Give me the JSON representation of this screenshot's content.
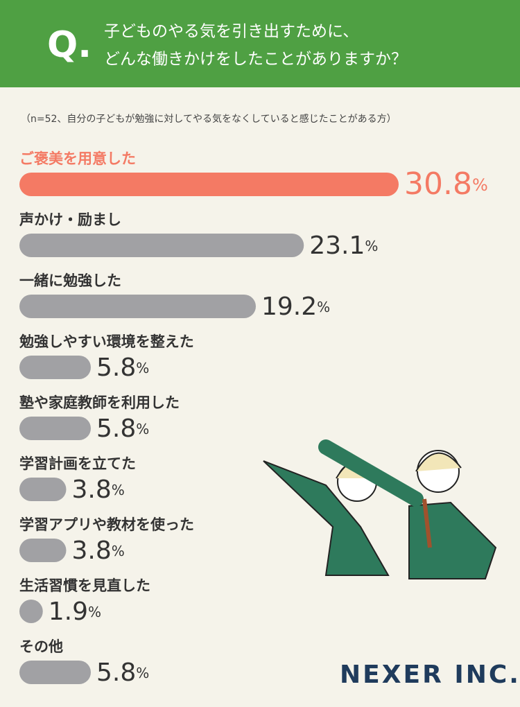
{
  "chart_data": {
    "type": "bar",
    "orientation": "horizontal",
    "question_mark": "Q.",
    "title_lines": [
      "子どものやる気を引き出すために、",
      "どんな働きかけをしたことがありますか？"
    ],
    "subtitle": "（n=52、自分の子どもが勉強に対してやる気をなくしていると感じたことがある方）",
    "categories": [
      "ご褒美を用意した",
      "声かけ・励まし",
      "一緒に勉強した",
      "勉強しやすい環境を整えた",
      "塾や家庭教師を利用した",
      "学習計画を立てた",
      "学習アプリや教材を使った",
      "生活習慣を見直した",
      "その他"
    ],
    "values": [
      30.8,
      23.1,
      19.2,
      5.8,
      5.8,
      3.8,
      3.8,
      1.9,
      5.8
    ],
    "value_labels": [
      "30.8%",
      "23.1%",
      "19.2%",
      "5.8%",
      "5.8%",
      "3.8%",
      "3.8%",
      "1.9%",
      "5.8%"
    ],
    "colors": [
      "#f47a64",
      "#a1a1a4",
      "#a1a1a4",
      "#a1a1a4",
      "#a1a1a4",
      "#a1a1a4",
      "#a1a1a4",
      "#a1a1a4",
      "#a1a1a4"
    ],
    "logo": "NEXER INC."
  }
}
